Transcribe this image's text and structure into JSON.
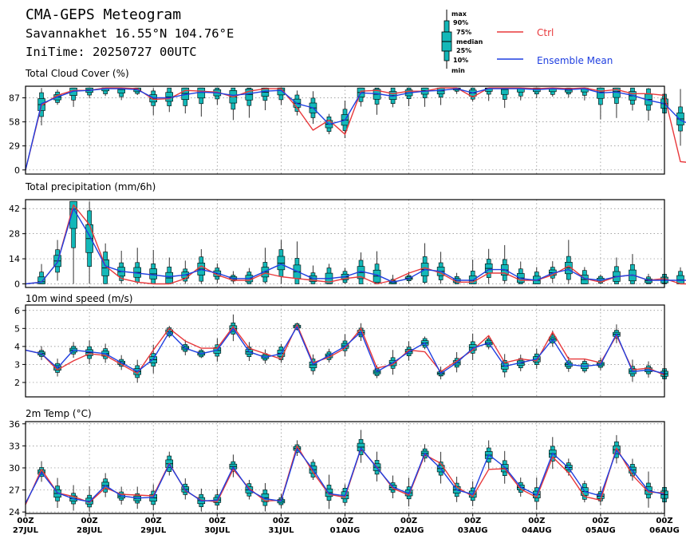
{
  "header": {
    "title": "CMA-GEPS Meteogram",
    "location": "Savannakhet 16.55°N 104.76°E",
    "init": "IniTime: 20250727 00UTC"
  },
  "legend": {
    "box_labels": [
      "max",
      "90%",
      "75%",
      "median",
      "25%",
      "10%",
      "min"
    ],
    "ctrl": "Ctrl",
    "mean": "Ensemble Mean",
    "ctrl_color": "#e8383b",
    "mean_color": "#1f3fe0",
    "box_color": "#13b8b8"
  },
  "chart_data": {
    "type": "line",
    "x_step_hours": 6,
    "x_ticks": [
      {
        "top": "00Z",
        "bottom": "27JUL"
      },
      {
        "top": "00Z",
        "bottom": "28JUL"
      },
      {
        "top": "00Z",
        "bottom": "29JUL"
      },
      {
        "top": "00Z",
        "bottom": "30JUL"
      },
      {
        "top": "00Z",
        "bottom": "31JUL"
      },
      {
        "top": "00Z",
        "bottom": "01AUG"
      },
      {
        "top": "00Z",
        "bottom": "02AUG"
      },
      {
        "top": "00Z",
        "bottom": "03AUG"
      },
      {
        "top": "00Z",
        "bottom": "04AUG"
      },
      {
        "top": "00Z",
        "bottom": "05AUG"
      },
      {
        "top": "00Z",
        "bottom": "06AUG"
      }
    ],
    "panels": [
      {
        "title": "Total Cloud Cover (%)",
        "ylim": [
          -5,
          101
        ],
        "yticks": [
          0,
          29,
          58,
          87
        ],
        "ctrl": [
          0,
          78,
          90,
          96,
          96,
          99,
          99,
          98,
          85,
          86,
          96,
          95,
          94,
          88,
          95,
          98,
          98,
          75,
          48,
          60,
          43,
          95,
          96,
          92,
          95,
          95,
          99,
          99,
          88,
          99,
          99,
          99,
          98,
          99,
          98,
          99,
          95,
          97,
          92,
          92,
          90,
          10,
          8
        ],
        "mean": [
          0,
          80,
          88,
          95,
          96,
          98,
          98,
          97,
          87,
          87,
          91,
          94,
          93,
          90,
          92,
          95,
          96,
          80,
          75,
          55,
          60,
          93,
          92,
          89,
          93,
          95,
          96,
          98,
          93,
          98,
          98,
          98,
          97,
          98,
          97,
          98,
          93,
          94,
          90,
          84,
          80,
          60,
          52
        ]
      },
      {
        "title": "Total precipitation (mm/6h)",
        "ylim": [
          -2,
          47
        ],
        "yticks": [
          0,
          14,
          28,
          42
        ],
        "ctrl": [
          0,
          1,
          12,
          44,
          33,
          10,
          3,
          1,
          0,
          0,
          3,
          10,
          5,
          2,
          2,
          6,
          4,
          3,
          2,
          1,
          3,
          4,
          0,
          2,
          6,
          9,
          6,
          1,
          1,
          6,
          6,
          2,
          2,
          5,
          10,
          3,
          1,
          4,
          5,
          2,
          3,
          0,
          0
        ],
        "mean": [
          0,
          1,
          12,
          42,
          27,
          10,
          7,
          6,
          5,
          4,
          5,
          8,
          6,
          3,
          3,
          7,
          11,
          7,
          3,
          3,
          4,
          7,
          5,
          1,
          3,
          8,
          7,
          2,
          2,
          8,
          8,
          3,
          2,
          6,
          8,
          3,
          2,
          4,
          5,
          2,
          2,
          2,
          2
        ]
      },
      {
        "title": "10m wind speed (m/s)",
        "ylim": [
          1.2,
          6.3
        ],
        "yticks": [
          2,
          3,
          4,
          5,
          6
        ],
        "ctrl": [
          3.8,
          3.6,
          2.7,
          3.2,
          3.6,
          3.5,
          3.0,
          2.5,
          3.8,
          5.0,
          4.3,
          3.9,
          3.9,
          5.1,
          3.9,
          3.6,
          3.3,
          5.2,
          3.1,
          3.4,
          3.9,
          5.0,
          2.8,
          3.0,
          3.8,
          3.7,
          2.6,
          3.2,
          3.8,
          4.6,
          3.1,
          3.3,
          3.2,
          4.8,
          3.3,
          3.3,
          3.1,
          4.6,
          2.7,
          2.8,
          2.4
        ],
        "mean": [
          3.8,
          3.6,
          2.8,
          3.8,
          3.7,
          3.6,
          3.1,
          2.6,
          3.3,
          4.8,
          3.9,
          3.6,
          3.8,
          5.0,
          3.7,
          3.4,
          3.6,
          5.1,
          3.0,
          3.5,
          4.0,
          4.8,
          2.6,
          3.1,
          3.7,
          4.2,
          2.5,
          3.1,
          3.9,
          4.2,
          2.9,
          3.1,
          3.3,
          4.4,
          3.0,
          2.9,
          3.0,
          4.7,
          2.6,
          2.7,
          2.5
        ]
      },
      {
        "title": "2m Temp (°C)",
        "ylim": [
          23.8,
          36.3
        ],
        "yticks": [
          24,
          27,
          30,
          33,
          36
        ],
        "ctrl": [
          25.0,
          29.8,
          26.6,
          26.1,
          25.3,
          27.3,
          26.4,
          26.3,
          26.2,
          30.6,
          26.9,
          25.6,
          25.4,
          29.8,
          27.2,
          25.5,
          25.6,
          33.0,
          29.4,
          26.4,
          26.0,
          32.6,
          30.1,
          27.2,
          26.3,
          31.8,
          30.6,
          27.4,
          26.1,
          29.8,
          29.9,
          27.1,
          26.0,
          31.5,
          29.3,
          26.1,
          25.6,
          32.7,
          29.0,
          26.7,
          26.6
        ],
        "mean": [
          25.2,
          29.4,
          26.6,
          25.8,
          25.4,
          27.6,
          26.2,
          25.9,
          26.0,
          30.5,
          27.0,
          25.5,
          25.6,
          30.1,
          27.0,
          25.8,
          25.5,
          32.6,
          29.8,
          26.5,
          26.2,
          32.7,
          30.0,
          27.4,
          26.5,
          32.0,
          29.9,
          27.0,
          26.4,
          31.8,
          30.1,
          27.4,
          26.3,
          32.0,
          30.0,
          26.8,
          26.2,
          32.4,
          29.6,
          26.9,
          26.4
        ]
      }
    ]
  }
}
